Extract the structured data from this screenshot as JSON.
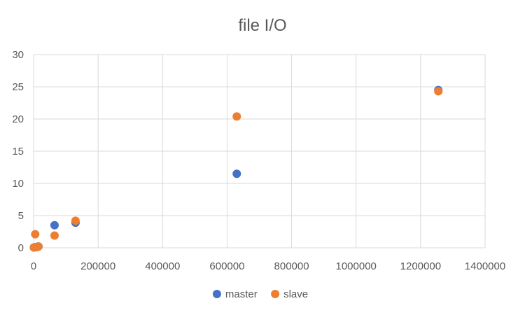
{
  "chart_data": {
    "type": "scatter",
    "title": "file I/O",
    "xlabel": "",
    "ylabel": "",
    "xlim": [
      0,
      1400000
    ],
    "ylim": [
      0,
      30
    ],
    "x_ticks": [
      0,
      200000,
      400000,
      600000,
      800000,
      1000000,
      1200000,
      1400000
    ],
    "y_ticks": [
      0,
      5,
      10,
      15,
      20,
      25,
      30
    ],
    "grid": true,
    "legend_position": "bottom",
    "series": [
      {
        "name": "master",
        "color": "#4472C4",
        "points": [
          {
            "x": 1000,
            "y": 0.05
          },
          {
            "x": 5000,
            "y": 0.1
          },
          {
            "x": 10000,
            "y": 0.15
          },
          {
            "x": 15000,
            "y": 0.2
          },
          {
            "x": 65000,
            "y": 3.5
          },
          {
            "x": 130000,
            "y": 3.9
          },
          {
            "x": 630000,
            "y": 11.5
          },
          {
            "x": 1255000,
            "y": 24.5
          }
        ]
      },
      {
        "name": "slave",
        "color": "#ED7D31",
        "points": [
          {
            "x": 1000,
            "y": 0.05
          },
          {
            "x": 5000,
            "y": 2.1
          },
          {
            "x": 10000,
            "y": 0.1
          },
          {
            "x": 15000,
            "y": 0.2
          },
          {
            "x": 65000,
            "y": 1.9
          },
          {
            "x": 130000,
            "y": 4.2
          },
          {
            "x": 630000,
            "y": 20.4
          },
          {
            "x": 1255000,
            "y": 24.3
          }
        ]
      }
    ]
  }
}
